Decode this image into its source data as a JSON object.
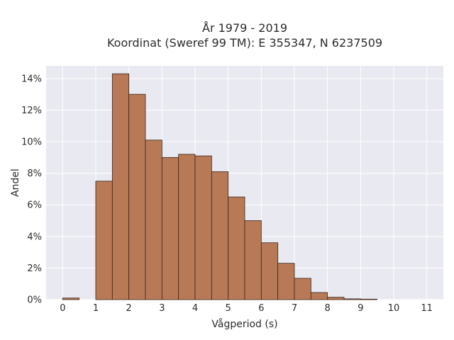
{
  "chart_data": {
    "type": "bar",
    "title_line1": "År 1979 - 2019",
    "title_line2": "Koordinat (Sweref 99 TM): E 355347, N 6237509",
    "xlabel": "Vågperiod (s)",
    "ylabel": "Andel",
    "xlim": [
      -0.5,
      11.5
    ],
    "ylim": [
      0,
      14.8
    ],
    "x_ticks": [
      0,
      1,
      2,
      3,
      4,
      5,
      6,
      7,
      8,
      9,
      10,
      11
    ],
    "y_ticks": [
      0,
      2,
      4,
      6,
      8,
      10,
      12,
      14
    ],
    "y_tick_labels": [
      "0%",
      "2%",
      "4%",
      "6%",
      "8%",
      "10%",
      "12%",
      "14%"
    ],
    "bin_width": 0.5,
    "bins": [
      {
        "x0": 0.0,
        "value": 0.1
      },
      {
        "x0": 1.0,
        "value": 7.5
      },
      {
        "x0": 1.5,
        "value": 14.3
      },
      {
        "x0": 2.0,
        "value": 13.0
      },
      {
        "x0": 2.5,
        "value": 10.1
      },
      {
        "x0": 3.0,
        "value": 9.0
      },
      {
        "x0": 3.5,
        "value": 9.2
      },
      {
        "x0": 4.0,
        "value": 9.1
      },
      {
        "x0": 4.5,
        "value": 8.1
      },
      {
        "x0": 5.0,
        "value": 6.5
      },
      {
        "x0": 5.5,
        "value": 5.0
      },
      {
        "x0": 6.0,
        "value": 3.6
      },
      {
        "x0": 6.5,
        "value": 2.3
      },
      {
        "x0": 7.0,
        "value": 1.35
      },
      {
        "x0": 7.5,
        "value": 0.45
      },
      {
        "x0": 8.0,
        "value": 0.15
      },
      {
        "x0": 8.5,
        "value": 0.05
      },
      {
        "x0": 9.0,
        "value": 0.03
      }
    ],
    "grid": true,
    "colors": {
      "bar_fill": "#b87a56",
      "bar_edge": "#3b2418",
      "plot_background": "#e9e9f1",
      "grid": "#ffffff"
    }
  }
}
